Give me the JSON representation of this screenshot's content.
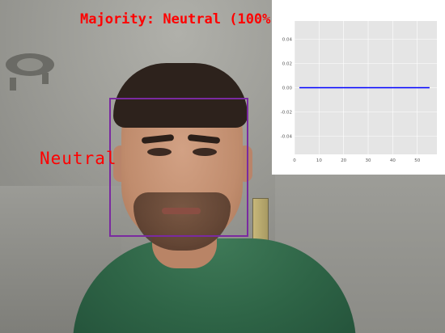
{
  "overlay": {
    "majority_text": "Majority: Neutral (100%)",
    "emotion_text": "Neutral",
    "text_color": "#ff0000",
    "box_color": "#7a2aa0"
  },
  "chart_data": {
    "type": "line",
    "title": "",
    "xlabel": "",
    "ylabel": "",
    "xlim": [
      0,
      58
    ],
    "ylim": [
      -0.055,
      0.055
    ],
    "xticks": [
      0,
      10,
      20,
      30,
      40,
      50
    ],
    "yticks": [
      0.04,
      0.02,
      0.0,
      -0.02,
      -0.04
    ],
    "ytick_labels": [
      "0.04",
      "0.02",
      "0.00",
      "-0.02",
      "-0.04"
    ],
    "grid": true,
    "background": "#e5e5e5",
    "series": [
      {
        "color": "#0000ff",
        "x": [
          2,
          55
        ],
        "y": [
          0.0,
          0.0
        ]
      }
    ]
  }
}
